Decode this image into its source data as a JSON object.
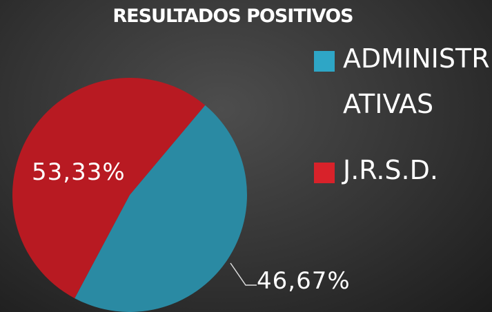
{
  "chart_data": {
    "type": "pie",
    "title": "RESULTADOS POSITIVOS",
    "categories": [
      "ADMINISTRATIVAS",
      "J.R.S.D."
    ],
    "values": [
      46.67,
      53.33
    ],
    "value_labels": [
      "46,67%",
      "53,33%"
    ],
    "colors": [
      "#2a8aa3",
      "#b81a22"
    ],
    "legend": "right"
  }
}
